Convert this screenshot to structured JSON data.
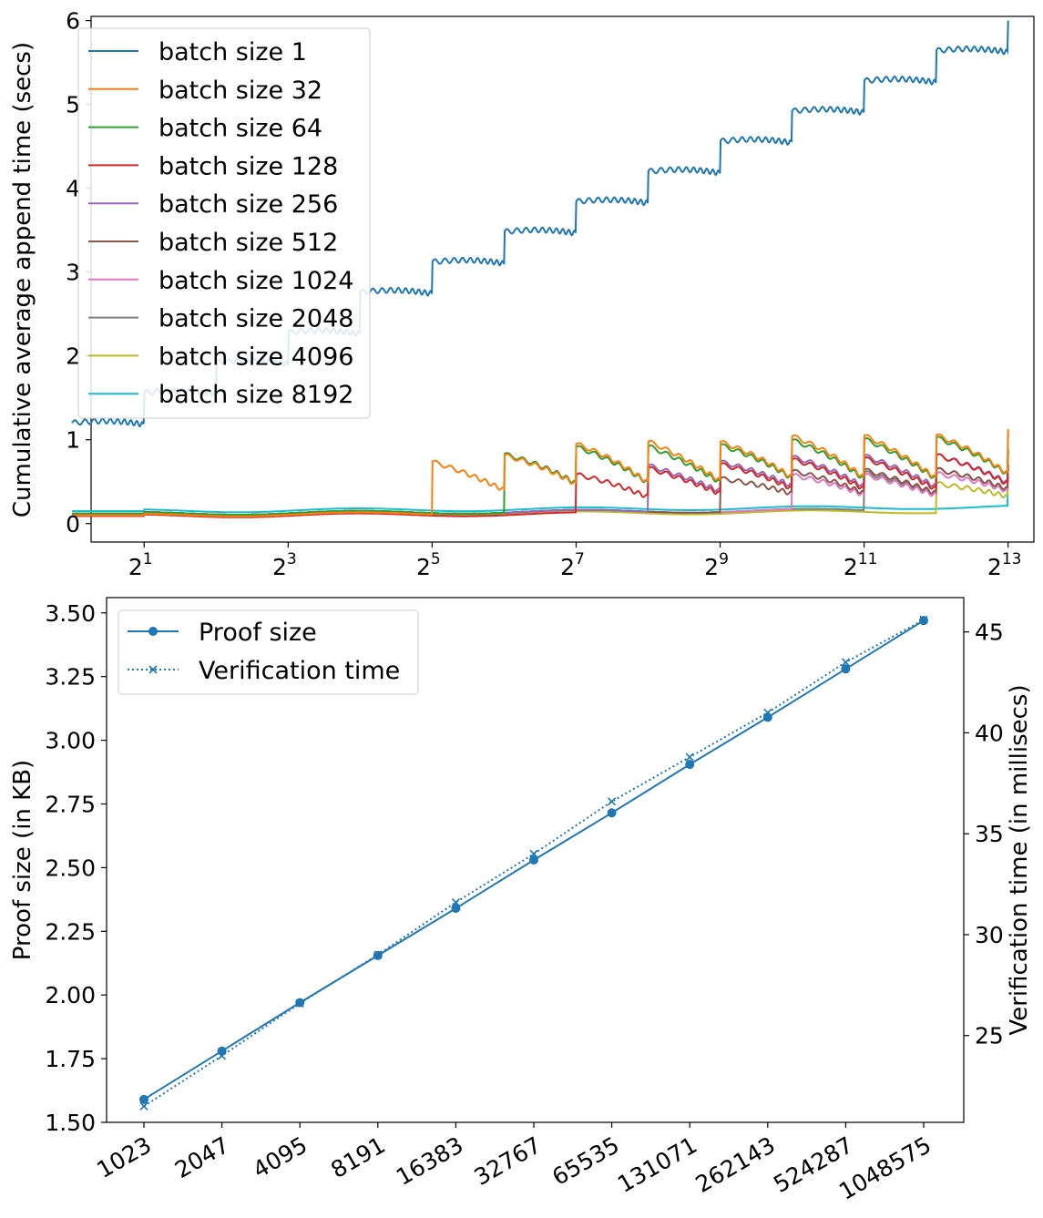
{
  "chart_data": [
    {
      "type": "line",
      "xscale": "log2",
      "xlim": [
        1.2,
        10500
      ],
      "ylim": [
        -0.22,
        6.05
      ],
      "xlabel": "",
      "ylabel": "Cumulative average append time (secs)",
      "x_ticks": [
        {
          "value": 2,
          "base": "2",
          "exp": "1"
        },
        {
          "value": 8,
          "base": "2",
          "exp": "3"
        },
        {
          "value": 32,
          "base": "2",
          "exp": "5"
        },
        {
          "value": 128,
          "base": "2",
          "exp": "7"
        },
        {
          "value": 512,
          "base": "2",
          "exp": "9"
        },
        {
          "value": 2048,
          "base": "2",
          "exp": "11"
        },
        {
          "value": 8192,
          "base": "2",
          "exp": "13"
        }
      ],
      "y_ticks": [
        0,
        1,
        2,
        3,
        4,
        5,
        6
      ],
      "legend_position": "upper-left",
      "x_start": 1,
      "x_end": 8192,
      "series": [
        {
          "name": "batch size 1",
          "color": "#1f77b4",
          "batch": 1,
          "floor": 1.15,
          "base_start": 1.2,
          "slope": 0.395,
          "first_block": 1,
          "jump": [
            0.0,
            0.3,
            0.48,
            0.55,
            0.52,
            0.55,
            0.58
          ]
        },
        {
          "name": "batch size 32",
          "color": "#ff7f0e",
          "batch": 32,
          "floor": 0.07,
          "base_start": 0.1,
          "slope": 0.005,
          "first_block": 32,
          "jump": [
            0.63,
            0.7,
            0.8,
            0.85,
            0.85,
            0.88,
            0.9,
            0.92,
            0.95
          ]
        },
        {
          "name": "batch size 64",
          "color": "#2ca02c",
          "batch": 64,
          "floor": 0.09,
          "base_start": 0.12,
          "slope": 0.004,
          "first_block": 64,
          "jump": [
            0.7,
            0.75,
            0.78,
            0.8,
            0.82,
            0.85,
            0.88,
            0.9
          ]
        },
        {
          "name": "batch size 128",
          "color": "#d62728",
          "batch": 128,
          "floor": 0.07,
          "base_start": 0.09,
          "slope": 0.004,
          "first_block": 128,
          "jump": [
            0.45,
            0.55,
            0.6,
            0.62,
            0.65,
            0.7,
            0.72
          ]
        },
        {
          "name": "batch size 256",
          "color": "#9467bd",
          "batch": 256,
          "floor": 0.09,
          "base_start": 0.12,
          "slope": 0.004,
          "first_block": 256,
          "jump": [
            0.55,
            0.6,
            0.62,
            0.65,
            0.67,
            0.7
          ]
        },
        {
          "name": "batch size 512",
          "color": "#8c564b",
          "batch": 512,
          "floor": 0.09,
          "base_start": 0.12,
          "slope": 0.004,
          "first_block": 512,
          "jump": [
            0.4,
            0.45,
            0.48,
            0.5,
            0.52
          ]
        },
        {
          "name": "batch size 1024",
          "color": "#e377c2",
          "batch": 1024,
          "floor": 0.09,
          "base_start": 0.12,
          "slope": 0.004,
          "first_block": 1024,
          "jump": [
            0.4,
            0.42,
            0.45,
            0.48
          ]
        },
        {
          "name": "batch size 2048",
          "color": "#7f7f7f",
          "batch": 2048,
          "floor": 0.09,
          "base_start": 0.12,
          "slope": 0.004,
          "first_block": 2048,
          "jump": [
            0.45,
            0.5,
            0.52
          ]
        },
        {
          "name": "batch size 4096",
          "color": "#bcbd22",
          "batch": 4096,
          "floor": 0.07,
          "base_start": 0.1,
          "slope": 0.004,
          "first_block": 4096,
          "jump": [
            0.35,
            0.4
          ]
        },
        {
          "name": "batch size 8192",
          "color": "#17becf",
          "batch": 8192,
          "floor": 0.12,
          "base_start": 0.15,
          "slope": 0.004,
          "first_block": 8192,
          "jump": [
            0.45
          ]
        }
      ]
    },
    {
      "type": "line",
      "dual_axis": true,
      "categories": [
        "1023",
        "2047",
        "4095",
        "8191",
        "16383",
        "32767",
        "65535",
        "131071",
        "262143",
        "524287",
        "1048575"
      ],
      "ylim_left": [
        1.5,
        3.56
      ],
      "ylim_right": [
        20.7,
        46.7
      ],
      "ylabel_left": "Proof size (in KB)",
      "ylabel_right": "Verification time (in millisecs)",
      "y_ticks_left": [
        "1.50",
        "1.75",
        "2.00",
        "2.25",
        "2.50",
        "2.75",
        "3.00",
        "3.25",
        "3.50"
      ],
      "y_ticks_right": [
        "25",
        "30",
        "35",
        "40",
        "45"
      ],
      "legend_position": "upper-left",
      "series": [
        {
          "name": "Proof size",
          "axis": "left",
          "marker": "circle",
          "line": "solid",
          "color": "#1f77b4",
          "values": [
            1.59,
            1.78,
            1.97,
            2.155,
            2.34,
            2.53,
            2.715,
            2.905,
            3.09,
            3.28,
            3.47
          ]
        },
        {
          "name": "Verification time",
          "axis": "right",
          "marker": "x",
          "line": "dotted",
          "color": "#1f77b4",
          "values": [
            21.5,
            24.0,
            26.6,
            29.0,
            31.6,
            34.0,
            36.6,
            38.8,
            41.0,
            43.5,
            45.6
          ]
        }
      ]
    }
  ]
}
